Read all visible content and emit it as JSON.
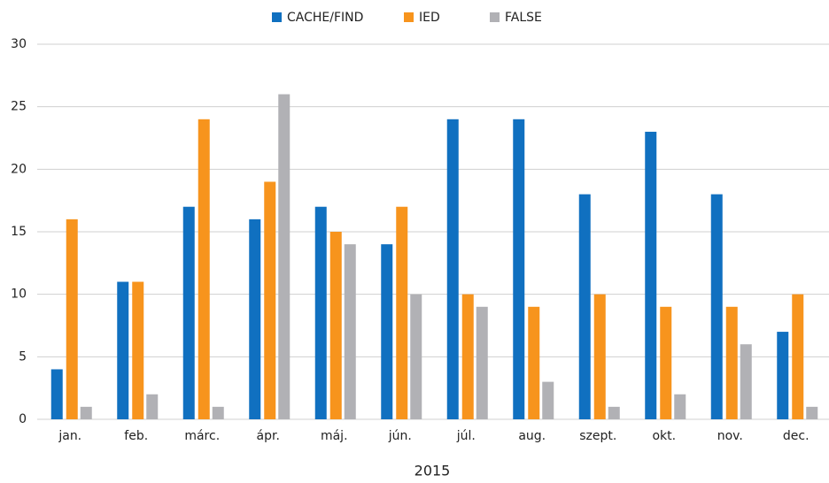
{
  "chart_data": {
    "type": "bar",
    "xlabel": "2015",
    "categories": [
      "jan.",
      "feb.",
      "márc.",
      "ápr.",
      "máj.",
      "jún.",
      "júl.",
      "aug.",
      "szept.",
      "okt.",
      "nov.",
      "dec."
    ],
    "series": [
      {
        "name": "CACHE/FIND",
        "color": "#1070c0",
        "values": [
          4,
          11,
          17,
          16,
          17,
          14,
          24,
          24,
          18,
          23,
          18,
          7
        ]
      },
      {
        "name": "IED",
        "color": "#f7941d",
        "values": [
          16,
          11,
          24,
          19,
          15,
          17,
          10,
          9,
          10,
          9,
          9,
          10
        ]
      },
      {
        "name": "FALSE",
        "color": "#b1b1b5",
        "values": [
          1,
          2,
          1,
          26,
          14,
          10,
          9,
          3,
          1,
          2,
          6,
          1
        ]
      }
    ],
    "ylim": [
      0,
      30
    ],
    "yticks": [
      0,
      5,
      10,
      15,
      20,
      25,
      30
    ],
    "grid": true,
    "legend": "top"
  }
}
